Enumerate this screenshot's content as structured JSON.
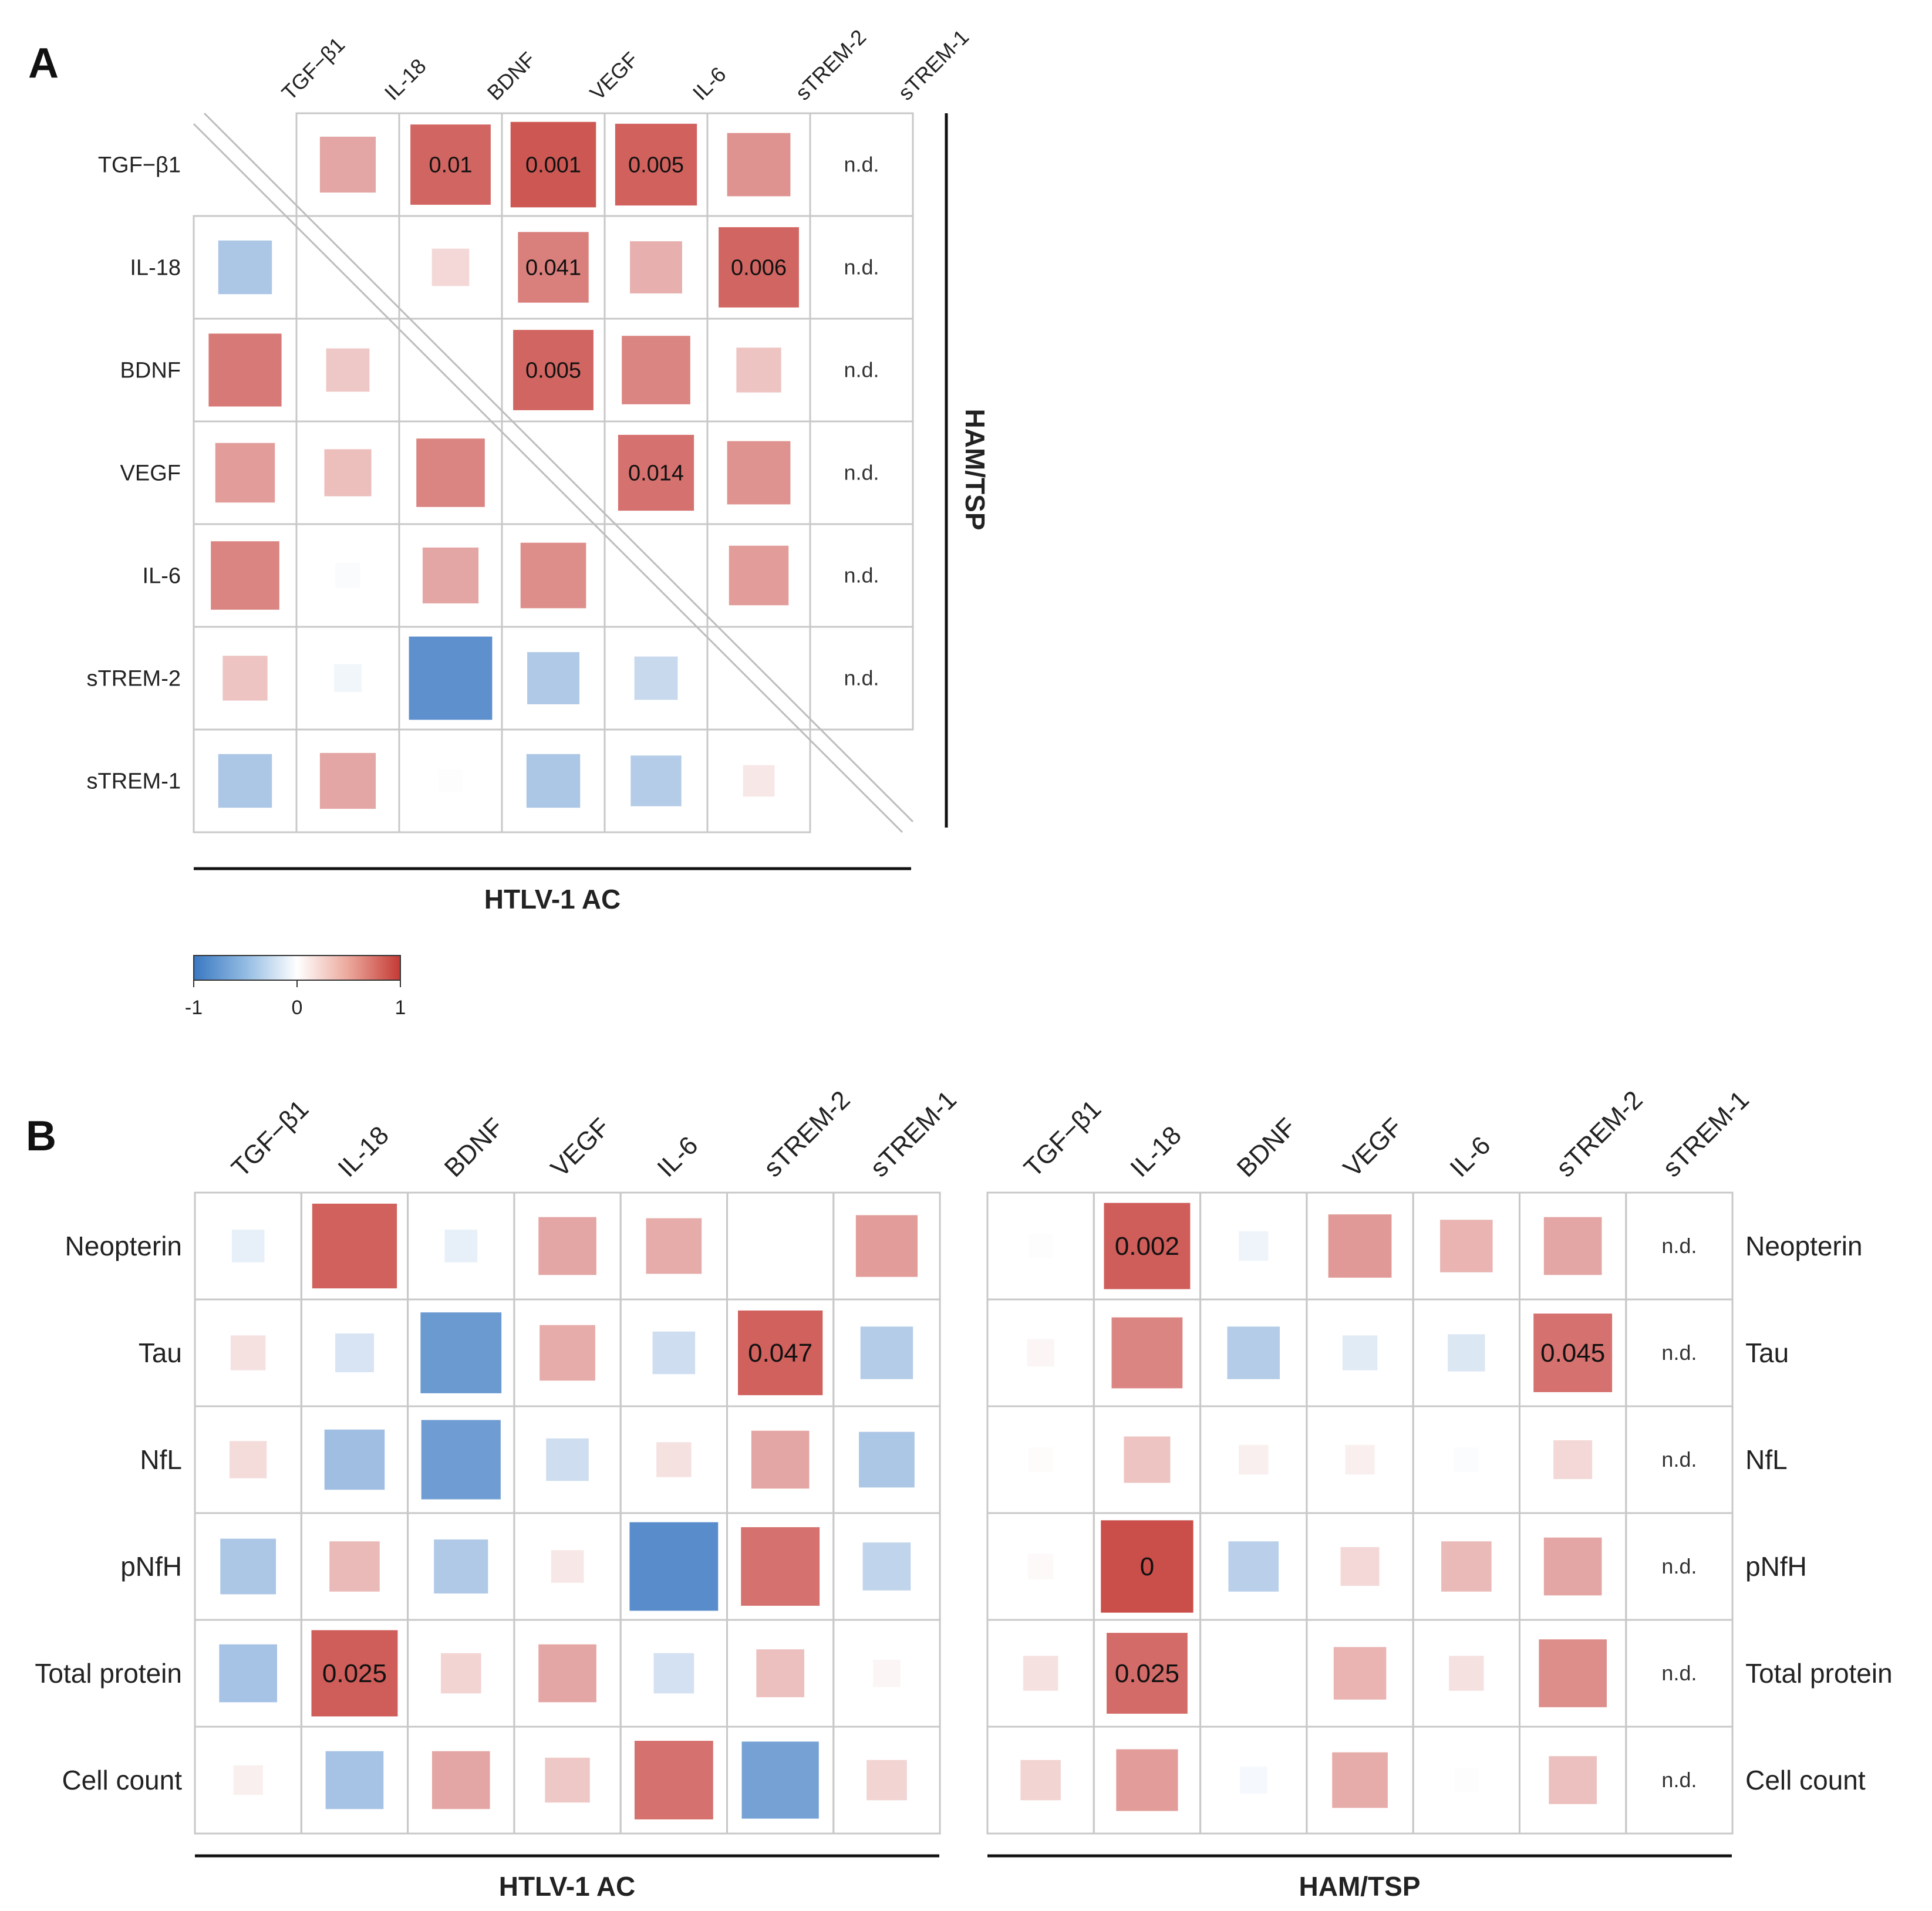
{
  "figure_colors": {
    "negative": "#3a78c2",
    "zero": "#ffffff",
    "positive": "#c43a35",
    "grid": "#c8c8c8",
    "text": "#222222"
  },
  "chart_data": [
    {
      "panel": "A",
      "type": "heatmap",
      "subtype": "correlation-matrix-split",
      "labels": [
        "TGF−β1",
        "IL-18",
        "BDNF",
        "VEGF",
        "IL-6",
        "sTREM-2",
        "sTREM-1"
      ],
      "upper_group": "HAM/TSP",
      "lower_group": "HTLV-1 AC",
      "value_range": [
        -1,
        1
      ],
      "legend_ticks": [
        "-1",
        "0",
        "1"
      ],
      "cells": [
        {
          "row": 0,
          "col": 1,
          "value": 0.45
        },
        {
          "row": 0,
          "col": 2,
          "value": 0.78,
          "label": "0.01"
        },
        {
          "row": 0,
          "col": 3,
          "value": 0.85,
          "label": "0.001"
        },
        {
          "row": 0,
          "col": 4,
          "value": 0.8,
          "label": "0.005"
        },
        {
          "row": 0,
          "col": 5,
          "value": 0.55
        },
        {
          "row": 0,
          "col": 6,
          "text": "n.d."
        },
        {
          "row": 1,
          "col": 2,
          "value": 0.2
        },
        {
          "row": 1,
          "col": 3,
          "value": 0.65,
          "label": "0.041"
        },
        {
          "row": 1,
          "col": 4,
          "value": 0.4
        },
        {
          "row": 1,
          "col": 5,
          "value": 0.78,
          "label": "0.006"
        },
        {
          "row": 1,
          "col": 6,
          "text": "n.d."
        },
        {
          "row": 2,
          "col": 3,
          "value": 0.78,
          "label": "0.005"
        },
        {
          "row": 2,
          "col": 4,
          "value": 0.62
        },
        {
          "row": 2,
          "col": 5,
          "value": 0.3
        },
        {
          "row": 2,
          "col": 6,
          "text": "n.d."
        },
        {
          "row": 3,
          "col": 4,
          "value": 0.72,
          "label": "0.014"
        },
        {
          "row": 3,
          "col": 5,
          "value": 0.55
        },
        {
          "row": 3,
          "col": 6,
          "text": "n.d."
        },
        {
          "row": 4,
          "col": 5,
          "value": 0.5
        },
        {
          "row": 4,
          "col": 6,
          "text": "n.d."
        },
        {
          "row": 5,
          "col": 6,
          "text": "n.d."
        },
        {
          "row": 1,
          "col": 0,
          "value": -0.42
        },
        {
          "row": 2,
          "col": 0,
          "value": 0.68
        },
        {
          "row": 2,
          "col": 1,
          "value": 0.28
        },
        {
          "row": 3,
          "col": 0,
          "value": 0.5
        },
        {
          "row": 3,
          "col": 1,
          "value": 0.33
        },
        {
          "row": 3,
          "col": 2,
          "value": 0.62
        },
        {
          "row": 4,
          "col": 0,
          "value": 0.62
        },
        {
          "row": 4,
          "col": 1,
          "value": -0.03
        },
        {
          "row": 4,
          "col": 2,
          "value": 0.45
        },
        {
          "row": 4,
          "col": 3,
          "value": 0.58
        },
        {
          "row": 5,
          "col": 0,
          "value": 0.3
        },
        {
          "row": 5,
          "col": 1,
          "value": -0.07
        },
        {
          "row": 5,
          "col": 2,
          "value": -0.82
        },
        {
          "row": 5,
          "col": 3,
          "value": -0.4
        },
        {
          "row": 5,
          "col": 4,
          "value": -0.28
        },
        {
          "row": 6,
          "col": 0,
          "value": -0.42
        },
        {
          "row": 6,
          "col": 1,
          "value": 0.45
        },
        {
          "row": 6,
          "col": 2,
          "value": 0.01
        },
        {
          "row": 6,
          "col": 3,
          "value": -0.42
        },
        {
          "row": 6,
          "col": 4,
          "value": -0.38
        },
        {
          "row": 6,
          "col": 5,
          "value": 0.12
        }
      ]
    },
    {
      "panel": "B",
      "type": "heatmap",
      "subtype": "correlation-matrix",
      "group": "HTLV-1 AC",
      "columns": [
        "TGF−β1",
        "IL-18",
        "BDNF",
        "VEGF",
        "IL-6",
        "sTREM-2",
        "sTREM-1"
      ],
      "rows": [
        "Neopterin",
        "Tau",
        "NfL",
        "pNfH",
        "Total protein",
        "Cell count"
      ],
      "values": [
        [
          -0.12,
          0.8,
          -0.12,
          0.45,
          0.42,
          null,
          0.5
        ],
        [
          0.15,
          -0.2,
          -0.75,
          0.42,
          -0.25,
          0.8,
          -0.38
        ],
        [
          0.18,
          -0.48,
          -0.73,
          -0.25,
          0.15,
          0.45,
          -0.42
        ],
        [
          -0.42,
          0.35,
          -0.4,
          0.12,
          -0.85,
          0.72,
          -0.32
        ],
        [
          -0.45,
          0.82,
          0.22,
          0.45,
          -0.22,
          0.32,
          0.05
        ],
        [
          0.08,
          -0.45,
          0.45,
          0.28,
          0.72,
          -0.7,
          0.22
        ]
      ],
      "labels": [
        [
          null,
          null,
          null,
          null,
          null,
          null,
          null
        ],
        [
          null,
          null,
          null,
          null,
          null,
          "0.047",
          null
        ],
        [
          null,
          null,
          null,
          null,
          null,
          null,
          null
        ],
        [
          null,
          null,
          null,
          null,
          null,
          null,
          null
        ],
        [
          null,
          "0.025",
          null,
          null,
          null,
          null,
          null
        ],
        [
          null,
          null,
          null,
          null,
          null,
          null,
          null
        ]
      ]
    },
    {
      "panel": "B",
      "type": "heatmap",
      "subtype": "correlation-matrix",
      "group": "HAM/TSP",
      "columns": [
        "TGF−β1",
        "IL-18",
        "BDNF",
        "VEGF",
        "IL-6",
        "sTREM-2",
        "sTREM-1"
      ],
      "rows": [
        "Neopterin",
        "Tau",
        "NfL",
        "pNfH",
        "Total protein",
        "Cell count"
      ],
      "values": [
        [
          0.01,
          0.82,
          -0.08,
          0.52,
          0.38,
          0.45,
          null
        ],
        [
          0.05,
          0.62,
          -0.38,
          -0.15,
          -0.18,
          0.72,
          null
        ],
        [
          0.02,
          0.3,
          0.08,
          0.08,
          -0.02,
          0.2,
          null
        ],
        [
          0.03,
          0.9,
          -0.35,
          0.2,
          0.35,
          0.45,
          null
        ],
        [
          0.15,
          0.75,
          null,
          0.38,
          0.15,
          0.58,
          null
        ],
        [
          0.22,
          0.5,
          -0.05,
          0.42,
          0.01,
          0.32,
          null
        ]
      ],
      "labels": [
        [
          null,
          "0.002",
          null,
          null,
          null,
          null,
          "n.d."
        ],
        [
          null,
          null,
          null,
          null,
          null,
          "0.045",
          "n.d."
        ],
        [
          null,
          null,
          null,
          null,
          null,
          null,
          "n.d."
        ],
        [
          null,
          "0",
          null,
          null,
          null,
          null,
          "n.d."
        ],
        [
          null,
          "0.025",
          null,
          null,
          null,
          null,
          "n.d."
        ],
        [
          null,
          null,
          null,
          null,
          null,
          null,
          "n.d."
        ]
      ]
    }
  ],
  "panel_a": {
    "letter": "A",
    "group_upper_label": "HAM/TSP",
    "group_lower_label": "HTLV-1 AC",
    "legend": {
      "min": "-1",
      "mid": "0",
      "max": "1"
    }
  },
  "panel_b": {
    "letter": "B",
    "group_left_label": "HTLV-1 AC",
    "group_right_label": "HAM/TSP"
  }
}
